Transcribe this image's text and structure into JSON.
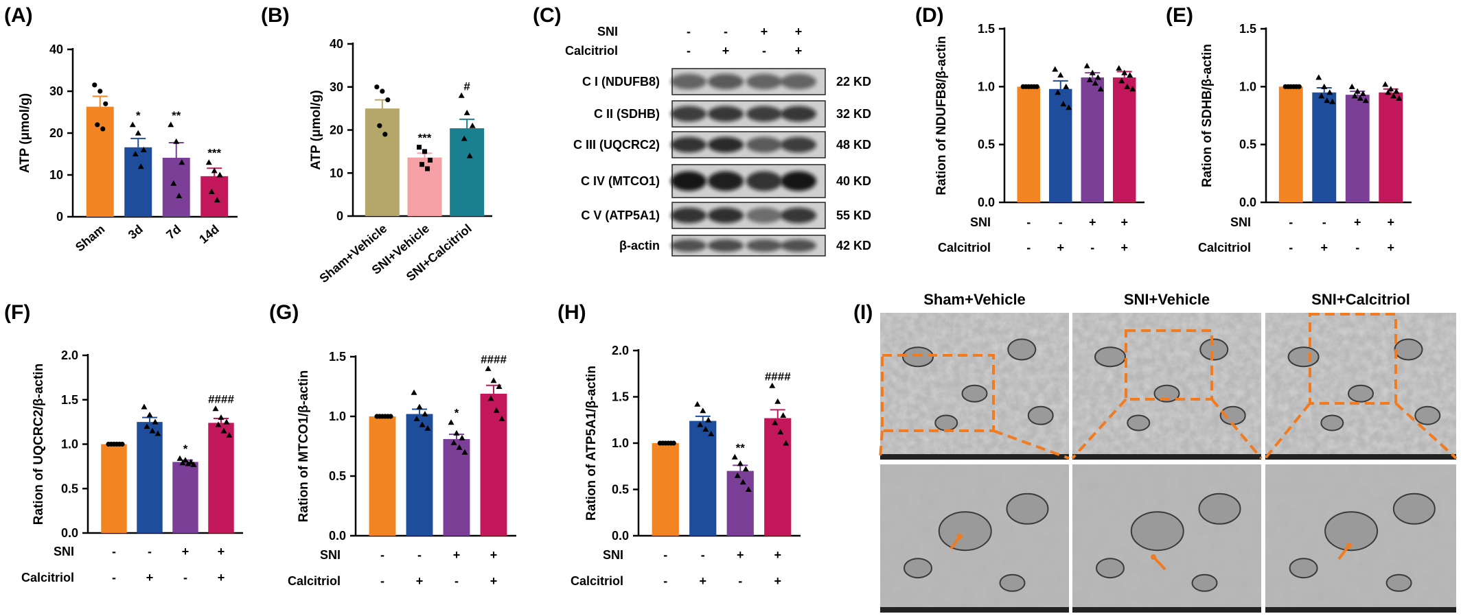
{
  "colors": {
    "orange": "#F28522",
    "blue": "#1E4D9B",
    "purple": "#7B3F98",
    "crimson": "#C2185B",
    "khaki": "#B5A66A",
    "pink": "#F4A0A4",
    "teal": "#1A7F8E",
    "dash": "#F07B21"
  },
  "chart_data": [
    {
      "panel": "(A)",
      "type": "bar",
      "ylabel": "ATP (μmol/g)",
      "ylim": [
        0,
        40
      ],
      "yticks": [
        "0",
        "10",
        "20",
        "30",
        "40"
      ],
      "categories": [
        "Sham",
        "3d",
        "7d",
        "14d"
      ],
      "values": [
        26.3,
        16.6,
        14.1,
        9.7
      ],
      "errors": [
        2.5,
        2.1,
        3.6,
        1.9
      ],
      "significance": [
        "",
        "*",
        "**",
        "***"
      ],
      "points": [
        [
          31.5,
          30,
          27,
          22,
          21
        ],
        [
          22,
          20,
          16,
          15,
          12
        ],
        [
          22,
          18,
          13,
          8,
          5
        ],
        [
          13,
          11,
          10,
          6,
          4
        ]
      ],
      "markers": [
        "circle",
        "triangle",
        "triangle",
        "triangle"
      ],
      "colors": [
        "#F28522",
        "#1E4D9B",
        "#7B3F98",
        "#C2185B"
      ]
    },
    {
      "panel": "(B)",
      "type": "bar",
      "ylabel": "ATP (μmol/g)",
      "ylim": [
        0,
        40
      ],
      "yticks": [
        "0",
        "10",
        "20",
        "30",
        "40"
      ],
      "categories": [
        "Sham+Vehicle",
        "SNI+Vehicle",
        "SNI+Calcitriol"
      ],
      "values": [
        25.0,
        13.6,
        20.4
      ],
      "errors": [
        2.0,
        1.0,
        2.1
      ],
      "significance": [
        "",
        "***",
        "#"
      ],
      "points": [
        [
          30,
          29,
          27,
          21,
          19
        ],
        [
          16,
          15,
          13,
          12,
          11
        ],
        [
          28,
          24,
          21,
          18,
          14
        ]
      ],
      "markers": [
        "circle",
        "square",
        "triangle"
      ],
      "colors": [
        "#B5A66A",
        "#F4A0A4",
        "#1A7F8E"
      ]
    },
    {
      "panel": "(D)",
      "type": "bar",
      "ylabel": "Ration of NDUFB8/β-actin",
      "ylim": [
        0,
        1.5
      ],
      "yticks": [
        "0.0",
        "0.5",
        "1.0",
        "1.5"
      ],
      "values": [
        1.0,
        0.98,
        1.08,
        1.08
      ],
      "errors": [
        0,
        0.07,
        0.04,
        0.05
      ],
      "significance": [
        "",
        "",
        "",
        ""
      ],
      "points": [
        [
          1,
          1,
          1,
          1,
          1,
          1
        ],
        [
          1.15,
          1.1,
          1.0,
          0.95,
          0.85,
          0.82
        ],
        [
          1.18,
          1.12,
          1.08,
          1.06,
          1.03,
          0.98
        ],
        [
          1.16,
          1.12,
          1.1,
          1.05,
          1.0,
          0.98
        ]
      ],
      "markers": [
        "circle",
        "triangle",
        "triangle",
        "triangle"
      ],
      "colors": [
        "#F28522",
        "#1E4D9B",
        "#7B3F98",
        "#C2185B"
      ]
    },
    {
      "panel": "(E)",
      "type": "bar",
      "ylabel": "Ration of SDHB/β-actin",
      "ylim": [
        0,
        1.5
      ],
      "yticks": [
        "0.0",
        "0.5",
        "1.0",
        "1.5"
      ],
      "values": [
        1.0,
        0.95,
        0.93,
        0.95
      ],
      "errors": [
        0,
        0.04,
        0.03,
        0.03
      ],
      "significance": [
        "",
        "",
        "",
        ""
      ],
      "points": [
        [
          1,
          1,
          1,
          1,
          1,
          1
        ],
        [
          1.08,
          1.0,
          0.95,
          0.92,
          0.88,
          0.87
        ],
        [
          1.0,
          0.96,
          0.94,
          0.92,
          0.9,
          0.88
        ],
        [
          1.02,
          0.98,
          0.96,
          0.95,
          0.92,
          0.9
        ]
      ],
      "markers": [
        "circle",
        "triangle",
        "triangle",
        "triangle"
      ],
      "colors": [
        "#F28522",
        "#1E4D9B",
        "#7B3F98",
        "#C2185B"
      ]
    },
    {
      "panel": "(F)",
      "type": "bar",
      "ylabel": "Ration of UQCRC2/β-actin",
      "ylim": [
        0,
        2.0
      ],
      "yticks": [
        "0.0",
        "0.5",
        "1.0",
        "1.5",
        "2.0"
      ],
      "values": [
        1.0,
        1.25,
        0.8,
        1.24
      ],
      "errors": [
        0,
        0.05,
        0.02,
        0.05
      ],
      "significance": [
        "",
        "",
        "*",
        "####"
      ],
      "points": [
        [
          1,
          1,
          1,
          1,
          1,
          1
        ],
        [
          1.42,
          1.33,
          1.25,
          1.2,
          1.15,
          1.12
        ],
        [
          0.84,
          0.82,
          0.8,
          0.79,
          0.78,
          0.77
        ],
        [
          1.4,
          1.3,
          1.25,
          1.22,
          1.15,
          1.1
        ]
      ],
      "markers": [
        "circle",
        "triangle",
        "triangle",
        "triangle"
      ],
      "colors": [
        "#F28522",
        "#1E4D9B",
        "#7B3F98",
        "#C2185B"
      ]
    },
    {
      "panel": "(G)",
      "type": "bar",
      "ylabel": "Ration of MTCO1/β-actin",
      "ylim": [
        0,
        1.5
      ],
      "yticks": [
        "0.0",
        "0.5",
        "1.0",
        "1.5"
      ],
      "values": [
        1.0,
        1.02,
        0.81,
        1.19
      ],
      "errors": [
        0,
        0.04,
        0.04,
        0.07
      ],
      "significance": [
        "",
        "",
        "*",
        "####"
      ],
      "points": [
        [
          1,
          1,
          1,
          1,
          1,
          1
        ],
        [
          1.2,
          1.08,
          1.02,
          0.98,
          0.93,
          0.9
        ],
        [
          0.95,
          0.86,
          0.82,
          0.78,
          0.74,
          0.7
        ],
        [
          1.4,
          1.3,
          1.25,
          1.15,
          1.05,
          0.98
        ]
      ],
      "markers": [
        "circle",
        "triangle",
        "triangle",
        "triangle"
      ],
      "colors": [
        "#F28522",
        "#1E4D9B",
        "#7B3F98",
        "#C2185B"
      ]
    },
    {
      "panel": "(H)",
      "type": "bar",
      "ylabel": "Ration of ATP5A1/β-actin",
      "ylim": [
        0,
        2.0
      ],
      "yticks": [
        "0.0",
        "0.5",
        "1.0",
        "1.5",
        "2.0"
      ],
      "values": [
        1.0,
        1.24,
        0.7,
        1.27
      ],
      "errors": [
        0,
        0.05,
        0.06,
        0.09
      ],
      "significance": [
        "",
        "",
        "**",
        "####"
      ],
      "points": [
        [
          1,
          1,
          1,
          1,
          1,
          1
        ],
        [
          1.42,
          1.35,
          1.25,
          1.2,
          1.15,
          1.1
        ],
        [
          0.85,
          0.78,
          0.72,
          0.65,
          0.58,
          0.5
        ],
        [
          1.62,
          1.45,
          1.3,
          1.22,
          1.12,
          1.0
        ]
      ],
      "markers": [
        "circle",
        "triangle",
        "triangle",
        "triangle"
      ],
      "colors": [
        "#F28522",
        "#1E4D9B",
        "#7B3F98",
        "#C2185B"
      ]
    }
  ],
  "treatment_table": {
    "rows": [
      {
        "label": "SNI",
        "values": [
          "-",
          "-",
          "+",
          "+"
        ]
      },
      {
        "label": "Calcitriol",
        "values": [
          "-",
          "+",
          "-",
          "+"
        ]
      }
    ]
  },
  "western_blot": {
    "panel": "(C)",
    "header": [
      {
        "label": "SNI",
        "values": [
          "-",
          "-",
          "+",
          "+"
        ]
      },
      {
        "label": "Calcitriol",
        "values": [
          "-",
          "+",
          "-",
          "+"
        ]
      }
    ],
    "bands": [
      {
        "name": "C I (NDUFB8)",
        "kd": "22 KD"
      },
      {
        "name": "C II (SDHB)",
        "kd": "32 KD"
      },
      {
        "name": "C III (UQCRC2)",
        "kd": "48 KD"
      },
      {
        "name": "C IV (MTCO1)",
        "kd": "40 KD"
      },
      {
        "name": "C V (ATP5A1)",
        "kd": "55 KD"
      },
      {
        "name": "β-actin",
        "kd": "42 KD"
      }
    ]
  },
  "em_panel": {
    "panel": "(I)",
    "columns": [
      "Sham+Vehicle",
      "SNI+Vehicle",
      "SNI+Calcitriol"
    ]
  }
}
